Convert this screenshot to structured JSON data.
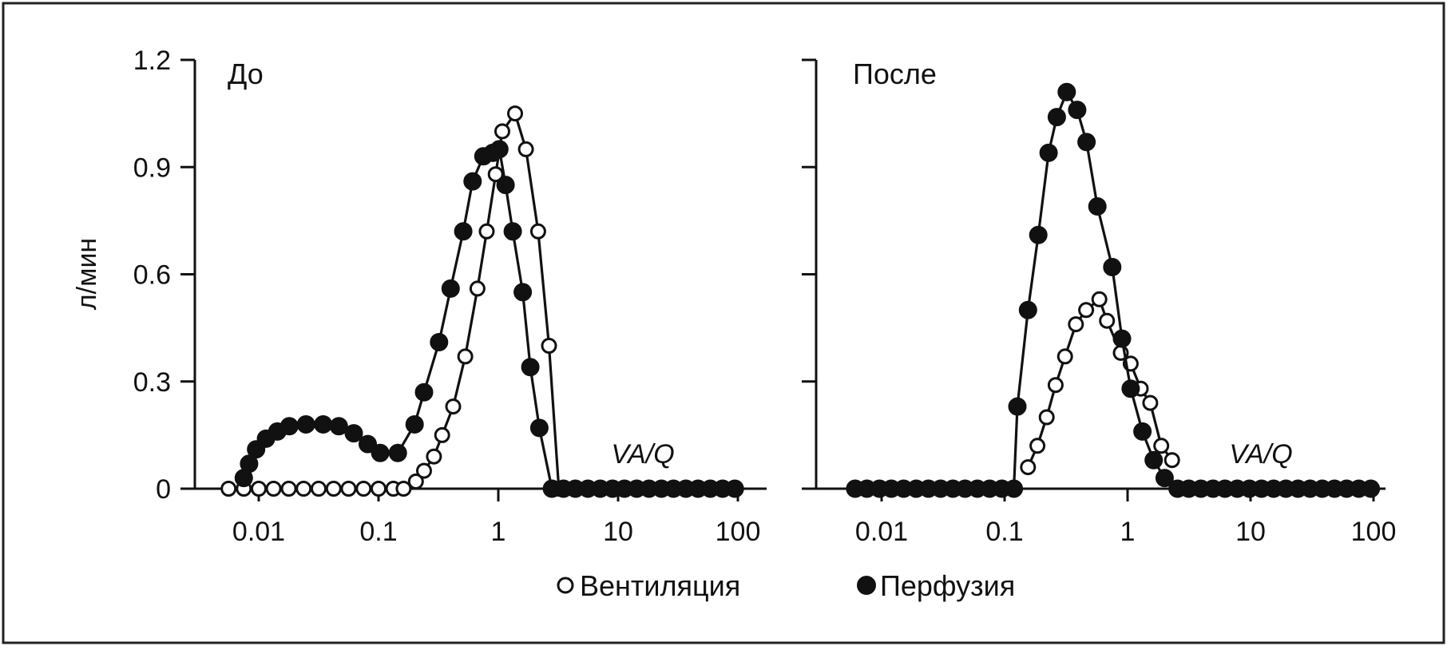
{
  "chart_data": [
    {
      "type": "line",
      "title": "До",
      "xlabel": "VA/Q",
      "ylabel": "л/мин",
      "xscale": "log",
      "xlim": [
        0.004,
        100
      ],
      "ylim": [
        0,
        1.2
      ],
      "xticks": [
        "0.01",
        "0.1",
        "1",
        "10",
        "100"
      ],
      "yticks": [
        "0",
        "0.3",
        "0.6",
        "0.9",
        "1.2"
      ],
      "series": [
        {
          "name": "Вентиляция",
          "marker": "open-circle",
          "points": [
            [
              0.0056,
              0
            ],
            [
              0.0075,
              0
            ],
            [
              0.01,
              0
            ],
            [
              0.0133,
              0
            ],
            [
              0.0178,
              0
            ],
            [
              0.0237,
              0
            ],
            [
              0.0316,
              0
            ],
            [
              0.0422,
              0
            ],
            [
              0.0562,
              0
            ],
            [
              0.075,
              0
            ],
            [
              0.1,
              0
            ],
            [
              0.133,
              0
            ],
            [
              0.162,
              0
            ],
            [
              0.205,
              0.02
            ],
            [
              0.24,
              0.05
            ],
            [
              0.29,
              0.09
            ],
            [
              0.34,
              0.15
            ],
            [
              0.42,
              0.23
            ],
            [
              0.53,
              0.37
            ],
            [
              0.67,
              0.56
            ],
            [
              0.8,
              0.72
            ],
            [
              0.95,
              0.88
            ],
            [
              1.08,
              1.0
            ],
            [
              1.38,
              1.05
            ],
            [
              1.7,
              0.95
            ],
            [
              2.15,
              0.72
            ],
            [
              2.65,
              0.4
            ],
            [
              3.2,
              0
            ]
          ]
        },
        {
          "name": "Перфузия",
          "marker": "filled-circle",
          "points": [
            [
              0.0075,
              0.03
            ],
            [
              0.0083,
              0.07
            ],
            [
              0.0095,
              0.11
            ],
            [
              0.0115,
              0.14
            ],
            [
              0.0143,
              0.16
            ],
            [
              0.018,
              0.175
            ],
            [
              0.0248,
              0.18
            ],
            [
              0.0345,
              0.18
            ],
            [
              0.0466,
              0.175
            ],
            [
              0.0621,
              0.155
            ],
            [
              0.0813,
              0.125
            ],
            [
              0.1032,
              0.1
            ],
            [
              0.1449,
              0.1
            ],
            [
              0.2,
              0.18
            ],
            [
              0.24,
              0.27
            ],
            [
              0.32,
              0.41
            ],
            [
              0.4,
              0.56
            ],
            [
              0.51,
              0.72
            ],
            [
              0.61,
              0.86
            ],
            [
              0.75,
              0.93
            ],
            [
              0.9,
              0.94
            ],
            [
              1.02,
              0.95
            ],
            [
              1.15,
              0.85
            ],
            [
              1.32,
              0.72
            ],
            [
              1.6,
              0.55
            ],
            [
              1.85,
              0.34
            ],
            [
              2.2,
              0.17
            ],
            [
              2.8,
              0
            ],
            [
              3.5,
              0
            ],
            [
              4.4,
              0
            ],
            [
              5.6,
              0
            ],
            [
              7.1,
              0
            ],
            [
              9,
              0
            ],
            [
              11.3,
              0
            ],
            [
              14.3,
              0
            ],
            [
              18.1,
              0
            ],
            [
              23,
              0
            ],
            [
              29,
              0
            ],
            [
              36.8,
              0
            ],
            [
              46.5,
              0
            ],
            [
              58.9,
              0
            ],
            [
              74.6,
              0
            ],
            [
              94.4,
              0
            ]
          ]
        }
      ]
    },
    {
      "type": "line",
      "title": "После",
      "xlabel": "VA/Q",
      "ylabel": "",
      "xscale": "log",
      "xlim": [
        0.004,
        100
      ],
      "ylim": [
        0,
        1.2
      ],
      "xticks": [
        "0.01",
        "0.1",
        "1",
        "10",
        "100"
      ],
      "yticks": [],
      "series": [
        {
          "name": "Вентиляция",
          "marker": "open-circle",
          "points": [
            [
              0.155,
              0.06
            ],
            [
              0.185,
              0.12
            ],
            [
              0.22,
              0.2
            ],
            [
              0.26,
              0.29
            ],
            [
              0.31,
              0.37
            ],
            [
              0.38,
              0.46
            ],
            [
              0.46,
              0.5
            ],
            [
              0.59,
              0.53
            ],
            [
              0.68,
              0.47
            ],
            [
              0.88,
              0.38
            ],
            [
              1.06,
              0.35
            ],
            [
              1.28,
              0.28
            ],
            [
              1.53,
              0.24
            ],
            [
              1.88,
              0.12
            ],
            [
              2.3,
              0.08
            ]
          ]
        },
        {
          "name": "Перфузия",
          "marker": "filled-circle",
          "points": [
            [
              0.0061,
              0
            ],
            [
              0.0076,
              0
            ],
            [
              0.0096,
              0
            ],
            [
              0.012,
              0
            ],
            [
              0.0151,
              0
            ],
            [
              0.0191,
              0
            ],
            [
              0.024,
              0
            ],
            [
              0.0302,
              0
            ],
            [
              0.038,
              0
            ],
            [
              0.0477,
              0
            ],
            [
              0.0601,
              0
            ],
            [
              0.0756,
              0
            ],
            [
              0.0951,
              0
            ],
            [
              0.119,
              0
            ],
            [
              0.127,
              0.23
            ],
            [
              0.155,
              0.5
            ],
            [
              0.188,
              0.71
            ],
            [
              0.228,
              0.94
            ],
            [
              0.266,
              1.04
            ],
            [
              0.32,
              1.11
            ],
            [
              0.389,
              1.06
            ],
            [
              0.464,
              0.97
            ],
            [
              0.568,
              0.79
            ],
            [
              0.75,
              0.62
            ],
            [
              0.9,
              0.42
            ],
            [
              1.06,
              0.28
            ],
            [
              1.32,
              0.16
            ],
            [
              1.63,
              0.08
            ],
            [
              2.0,
              0.03
            ],
            [
              2.55,
              0
            ],
            [
              3.15,
              0
            ],
            [
              3.95,
              0
            ],
            [
              4.95,
              0
            ],
            [
              6.2,
              0
            ],
            [
              7.8,
              0
            ],
            [
              9.8,
              0
            ],
            [
              12.3,
              0
            ],
            [
              15.4,
              0
            ],
            [
              19.4,
              0
            ],
            [
              24.3,
              0
            ],
            [
              30.5,
              0
            ],
            [
              38.3,
              0
            ],
            [
              48.1,
              0
            ],
            [
              60.4,
              0
            ],
            [
              75.8,
              0
            ],
            [
              95.1,
              0
            ]
          ]
        }
      ]
    }
  ],
  "legend": {
    "placement": "bottom-center",
    "items": [
      {
        "label": "Вентиляция",
        "marker": "open-circle"
      },
      {
        "label": "Перфузия",
        "marker": "filled-circle"
      }
    ]
  },
  "colors": {
    "ink": "#111111",
    "background": "#ffffff",
    "frame": "#222222"
  }
}
